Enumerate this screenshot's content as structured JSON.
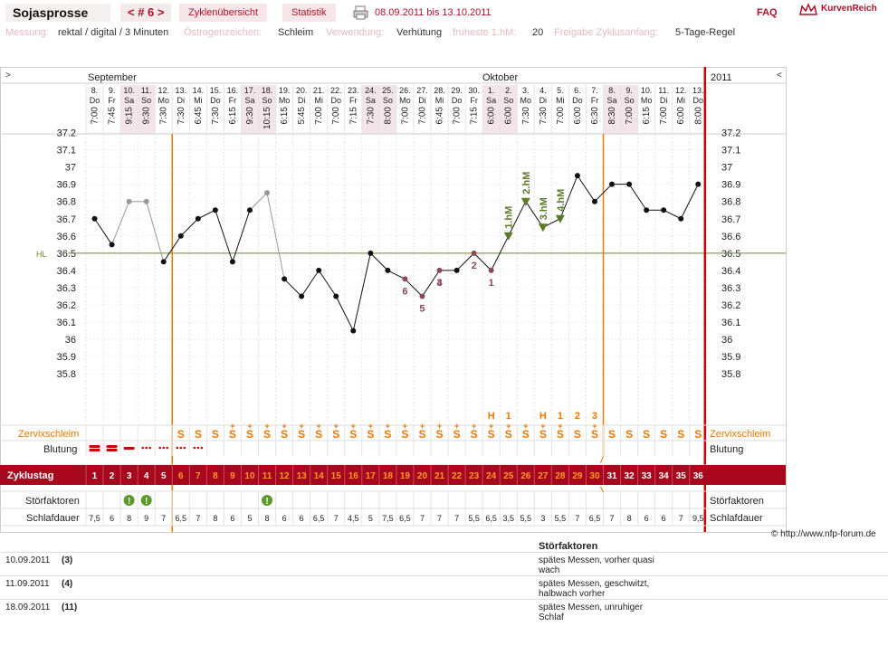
{
  "header": {
    "app_title": "Sojasprosse",
    "cycle_nav": "< # 6 >",
    "tabs": [
      {
        "label": "Zyklenübersicht"
      },
      {
        "label": "Statistik"
      }
    ],
    "date_range": "08.09.2011 bis 13.10.2011",
    "faq": "FAQ",
    "brand": "KurvenReich"
  },
  "info": {
    "messung_label": "Messung:",
    "messung_value": "rektal / digital / 3 Minuten",
    "oestrogen_label": "Östrogenzeichen:",
    "oestrogen_value": "Schleim",
    "verwendung_label": "Verwendung:",
    "verwendung_value": "Verhütung",
    "frueheste_label": "früheste 1.hM:",
    "frueheste_value": "20",
    "freigabe_label": "Freigabe Zyklusanfang:",
    "freigabe_value": "5-Tage-Regel"
  },
  "chart_data": {
    "type": "line",
    "months": [
      "September",
      "Oktober"
    ],
    "year": "2011",
    "nav_left": ">",
    "nav_right": "<",
    "dates": [
      "8.",
      "9.",
      "10.",
      "11.",
      "12.",
      "13.",
      "14.",
      "15.",
      "16.",
      "17.",
      "18.",
      "19.",
      "20.",
      "21.",
      "22.",
      "23.",
      "24.",
      "25.",
      "26.",
      "27.",
      "28.",
      "29.",
      "30.",
      "1.",
      "2.",
      "3.",
      "4.",
      "5.",
      "6.",
      "7.",
      "8.",
      "9.",
      "10.",
      "11.",
      "12.",
      "13."
    ],
    "weekdays": [
      "Do",
      "Fr",
      "Sa",
      "So",
      "Mo",
      "Di",
      "Mi",
      "Do",
      "Fr",
      "Sa",
      "So",
      "Mo",
      "Di",
      "Mi",
      "Do",
      "Fr",
      "Sa",
      "So",
      "Mo",
      "Di",
      "Mi",
      "Do",
      "Fr",
      "Sa",
      "So",
      "Mo",
      "Di",
      "Mi",
      "Do",
      "Fr",
      "Sa",
      "So",
      "Mo",
      "Di",
      "Mi",
      "Do"
    ],
    "times": [
      "7:00",
      "7:45",
      "9:15",
      "9:30",
      "7:30",
      "7:30",
      "6:45",
      "7:30",
      "6:15",
      "9:30",
      "10:15",
      "6:15",
      "5:45",
      "7:00",
      "7:00",
      "7:15",
      "7:30",
      "8:00",
      "7:00",
      "7:00",
      "6:45",
      "7:00",
      "7:15",
      "6:00",
      "6:00",
      "7:30",
      "7:30",
      "7:00",
      "6:00",
      "6:30",
      "8:30",
      "7:00",
      "6:15",
      "7:00",
      "6:00",
      "8:00"
    ],
    "temperatures": [
      36.7,
      36.55,
      36.8,
      36.8,
      36.45,
      36.6,
      36.7,
      36.75,
      36.45,
      36.75,
      36.85,
      36.35,
      36.25,
      36.4,
      36.25,
      36.05,
      36.5,
      36.4,
      36.35,
      36.25,
      36.4,
      36.4,
      36.5,
      36.4,
      36.6,
      36.8,
      36.65,
      36.7,
      36.95,
      36.8,
      36.9,
      36.9,
      36.75,
      36.75,
      36.7,
      36.9
    ],
    "disturbed_days": [
      3,
      4,
      11
    ],
    "y_ticks": [
      37.2,
      37.1,
      37.0,
      36.9,
      36.8,
      36.7,
      36.6,
      36.5,
      36.4,
      36.3,
      36.2,
      36.1,
      36.0,
      35.9,
      35.8
    ],
    "y_tick_labels": [
      "37.2",
      "37.1",
      "37",
      "36.9",
      "36.8",
      "36.7",
      "36.6",
      "36.5",
      "36.4",
      "36.3",
      "36.2",
      "36.1",
      "36",
      "35.9",
      "35.8"
    ],
    "ylim": [
      35.7,
      37.3
    ],
    "hl_label": "HL",
    "hl_value": 36.5,
    "low_numbers": [
      {
        "day": 24,
        "label": "1"
      },
      {
        "day": 23,
        "label": "2"
      },
      {
        "day": 21,
        "label": "3"
      },
      {
        "day": 20,
        "label": "5"
      },
      {
        "day": 21,
        "label": "4"
      },
      {
        "day": 19,
        "label": "6"
      }
    ],
    "high_markers": [
      {
        "day": 25,
        "label": "1.hM"
      },
      {
        "day": 26,
        "label": "2.hM"
      },
      {
        "day": 27,
        "label": "3.hM"
      },
      {
        "day": 28,
        "label": "4.hM"
      }
    ],
    "peak_row": [
      {
        "day": 24,
        "label": "H"
      },
      {
        "day": 25,
        "label": "1"
      },
      {
        "day": 27,
        "label": "H"
      },
      {
        "day": 28,
        "label": "1"
      },
      {
        "day": 29,
        "label": "2"
      },
      {
        "day": 30,
        "label": "3"
      }
    ],
    "mucus_label": "Zervixschleim",
    "mucus": [
      "",
      "",
      "",
      "",
      "",
      "S",
      "S",
      "S",
      "S+",
      "S+",
      "S+",
      "S+",
      "S+",
      "S+",
      "S+",
      "S+",
      "S+",
      "S+",
      "S+",
      "S+",
      "S+",
      "S+",
      "S+",
      "S+",
      "S+",
      "S+",
      "S+",
      "S+",
      "S",
      "S+",
      "S",
      "S",
      "S",
      "S",
      "S",
      "S"
    ],
    "bleeding_label": "Blutung",
    "bleeding": [
      "heavy",
      "heavy",
      "medium",
      "light",
      "light",
      "light",
      "light",
      "",
      "",
      "",
      "",
      "",
      "",
      "",
      "",
      "",
      "",
      "",
      "",
      "",
      "",
      "",
      "",
      "",
      "",
      "",
      "",
      "",
      "",
      "",
      "",
      "",
      "",
      "",
      "",
      ""
    ],
    "cycle_day_label": "Zyklustag",
    "cycle_days": [
      "1",
      "2",
      "3",
      "4",
      "5",
      "6",
      "7",
      "8",
      "9",
      "10",
      "11",
      "12",
      "13",
      "14",
      "15",
      "16",
      "17",
      "18",
      "19",
      "20",
      "21",
      "22",
      "23",
      "24",
      "25",
      "26",
      "27",
      "28",
      "29",
      "30",
      "31",
      "32",
      "33",
      "34",
      "35",
      "36"
    ],
    "disturbance_label": "Störfaktoren",
    "sleep_label": "Schlafdauer",
    "sleep": [
      "7,5",
      "6",
      "8",
      "9",
      "7",
      "6,5",
      "7",
      "8",
      "6",
      "5",
      "8",
      "6",
      "6",
      "6,5",
      "7",
      "4,5",
      "5",
      "7,5",
      "6,5",
      "7",
      "7",
      "7",
      "5,5",
      "6,5",
      "3,5",
      "5,5",
      "3",
      "5,5",
      "7",
      "6,5",
      "7",
      "8",
      "6",
      "6",
      "7",
      "9,5"
    ],
    "copyright": "© http://www.nfp-forum.de"
  },
  "notes": {
    "header": "Störfaktoren",
    "rows": [
      {
        "date": "10.09.2011",
        "day": "(3)",
        "text1": "spätes Messen, vorher quasi",
        "text2": "wach"
      },
      {
        "date": "11.09.2011",
        "day": "(4)",
        "text1": "spätes Messen, geschwitzt,",
        "text2": "halbwach vorher"
      },
      {
        "date": "18.09.2011",
        "day": "(11)",
        "text1": "spätes Messen, unruhiger",
        "text2": "Schlaf"
      }
    ]
  },
  "colors": {
    "accent": "#b0102a",
    "cycle_bar": "#a8081e",
    "orange": "#ee7700",
    "red_line": "#cc0000",
    "hl_line": "#6a8a2a",
    "hm_green": "#5a7a2a",
    "low_color": "#8a4a5a",
    "weekend_bg": "#f2e4e8"
  }
}
